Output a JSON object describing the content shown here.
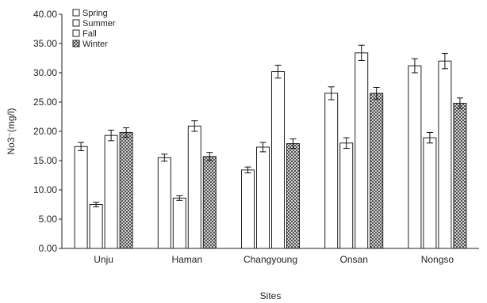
{
  "chart_data": {
    "type": "bar",
    "title": "",
    "xlabel": "Sites",
    "ylabel": "No3⁻(mg/l)",
    "ylim": [
      0,
      40
    ],
    "yticks": [
      "0.00",
      "5.00",
      "10.00",
      "15.00",
      "20.00",
      "25.00",
      "30.00",
      "35.00",
      "40.00"
    ],
    "grid": false,
    "legend_position": "top-left",
    "categories": [
      "Unju",
      "Haman",
      "Changyoung",
      "Onsan",
      "Nongso"
    ],
    "series": [
      {
        "name": "Spring",
        "pattern": "white",
        "values": [
          17.4,
          15.5,
          13.4,
          26.5,
          31.2
        ],
        "errors": [
          0.7,
          0.6,
          0.5,
          1.1,
          1.2
        ]
      },
      {
        "name": "Summer",
        "pattern": "white",
        "values": [
          7.5,
          8.6,
          17.3,
          18.0,
          18.9
        ],
        "errors": [
          0.4,
          0.4,
          0.8,
          0.9,
          0.9
        ]
      },
      {
        "name": "Fall",
        "pattern": "white",
        "values": [
          19.3,
          20.9,
          30.2,
          33.4,
          32.0
        ],
        "errors": [
          0.9,
          0.9,
          1.1,
          1.3,
          1.3
        ]
      },
      {
        "name": "Winter",
        "pattern": "crosshatch",
        "values": [
          19.8,
          15.7,
          17.9,
          26.5,
          24.8
        ],
        "errors": [
          0.8,
          0.7,
          0.8,
          1.0,
          0.9
        ]
      }
    ]
  }
}
